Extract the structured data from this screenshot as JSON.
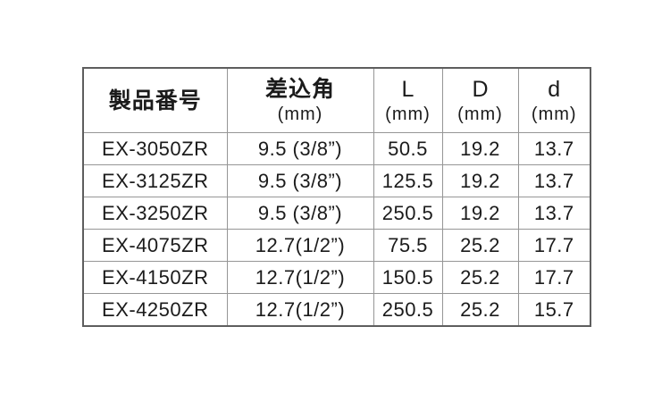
{
  "table": {
    "columns": [
      {
        "label": "製品番号",
        "unit": ""
      },
      {
        "label": "差込角",
        "unit": "(mm)"
      },
      {
        "label": "L",
        "unit": "(mm)"
      },
      {
        "label": "D",
        "unit": "(mm)"
      },
      {
        "label": "d",
        "unit": "(mm)"
      }
    ],
    "rows": [
      {
        "product": "EX-3050ZR",
        "drive": "9.5 (3/8”)",
        "L": "50.5",
        "D": "19.2",
        "d": "13.7"
      },
      {
        "product": "EX-3125ZR",
        "drive": "9.5 (3/8”)",
        "L": "125.5",
        "D": "19.2",
        "d": "13.7"
      },
      {
        "product": "EX-3250ZR",
        "drive": "9.5 (3/8”)",
        "L": "250.5",
        "D": "19.2",
        "d": "13.7"
      },
      {
        "product": "EX-4075ZR",
        "drive": "12.7(1/2”)",
        "L": "75.5",
        "D": "25.2",
        "d": "17.7"
      },
      {
        "product": "EX-4150ZR",
        "drive": "12.7(1/2”)",
        "L": "150.5",
        "D": "25.2",
        "d": "17.7"
      },
      {
        "product": "EX-4250ZR",
        "drive": "12.7(1/2”)",
        "L": "250.5",
        "D": "25.2",
        "d": "15.7"
      }
    ]
  }
}
